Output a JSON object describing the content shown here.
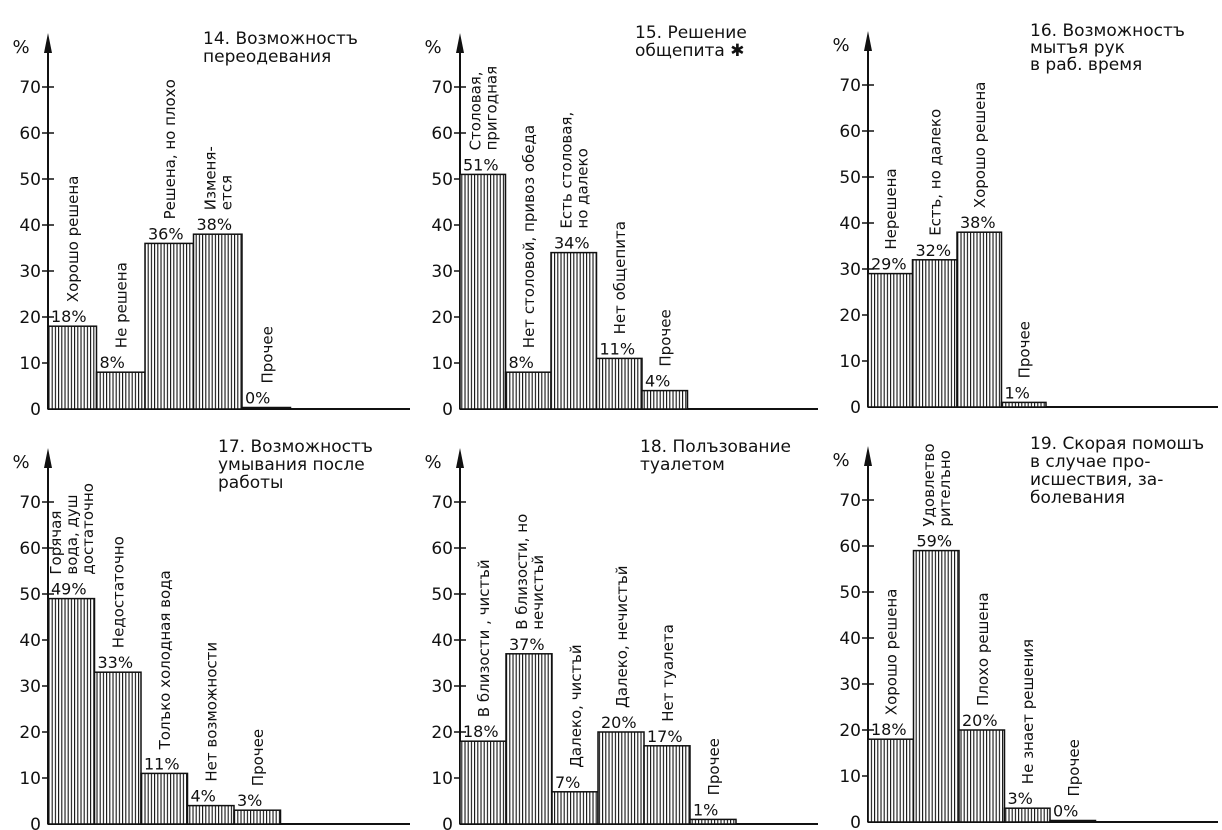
{
  "chart_data": [
    {
      "type": "bar",
      "title_lines": [
        "14. Возможностъ",
        "переодевания"
      ],
      "ylabel": "%",
      "yticks": [
        0,
        10,
        20,
        30,
        40,
        50,
        60,
        70
      ],
      "ylim": [
        0,
        80
      ],
      "grid": false,
      "categories": [
        [
          "Хорошо решена"
        ],
        [
          "Не решена"
        ],
        [
          "Решена, но плохо"
        ],
        [
          "Изменя-",
          "ется"
        ],
        [
          "Прочее"
        ]
      ],
      "values": [
        18,
        8,
        36,
        38,
        0
      ],
      "value_labels": [
        "18%",
        "8%",
        "36%",
        "38%",
        "0%"
      ]
    },
    {
      "type": "bar",
      "title_lines": [
        "15. Решение",
        "общепита ✱"
      ],
      "ylabel": "%",
      "yticks": [
        0,
        10,
        20,
        30,
        40,
        50,
        60,
        70
      ],
      "ylim": [
        0,
        80
      ],
      "grid": false,
      "categories": [
        [
          "Столовая,",
          "пригодная"
        ],
        [
          "Нет столовой, привоз обеда"
        ],
        [
          "Есть столовая,",
          "но далеко"
        ],
        [
          "Нет общепита"
        ],
        [
          "Прочее"
        ]
      ],
      "values": [
        51,
        8,
        34,
        11,
        4
      ],
      "value_labels": [
        "51%",
        "8%",
        "34%",
        "11%",
        "4%"
      ]
    },
    {
      "type": "bar",
      "title_lines": [
        "16. Возможностъ",
        "мытъя рук",
        "в раб. время"
      ],
      "ylabel": "%",
      "yticks": [
        0,
        10,
        20,
        30,
        40,
        50,
        60,
        70
      ],
      "ylim": [
        0,
        80
      ],
      "grid": false,
      "categories": [
        [
          "Нерешена"
        ],
        [
          "Естъ, но далеко"
        ],
        [
          "Хорошо решена"
        ],
        [
          "Прочее"
        ]
      ],
      "values": [
        29,
        32,
        38,
        1
      ],
      "value_labels": [
        "29%",
        "32%",
        "38%",
        "1%"
      ]
    },
    {
      "type": "bar",
      "title_lines": [
        "17. Возможностъ",
        "умывания после",
        "работы"
      ],
      "ylabel": "%",
      "yticks": [
        0,
        10,
        20,
        30,
        40,
        50,
        60,
        70
      ],
      "ylim": [
        0,
        80
      ],
      "grid": false,
      "categories": [
        [
          "Горячая",
          "вода, душ",
          "достаточно"
        ],
        [
          "Недостаточно"
        ],
        [
          "Толъко холодная вода"
        ],
        [
          "Нет возможности"
        ],
        [
          "Прочее"
        ]
      ],
      "values": [
        49,
        33,
        11,
        4,
        3
      ],
      "value_labels": [
        "49%",
        "33%",
        "11%",
        "4%",
        "3%"
      ]
    },
    {
      "type": "bar",
      "title_lines": [
        "18. Полъзование",
        "туалетом"
      ],
      "ylabel": "%",
      "yticks": [
        0,
        10,
        20,
        30,
        40,
        50,
        60,
        70
      ],
      "ylim": [
        0,
        80
      ],
      "grid": false,
      "categories": [
        [
          "В близости , чистъй"
        ],
        [
          "В близости, но",
          "нечистъй"
        ],
        [
          "Далеко, чистъй"
        ],
        [
          "Далеко, нечистъй"
        ],
        [
          "Нет туалета"
        ],
        [
          "Прочее"
        ]
      ],
      "values": [
        18,
        37,
        7,
        20,
        17,
        1
      ],
      "value_labels": [
        "18%",
        "37%",
        "7%",
        "20%",
        "17%",
        "1%"
      ]
    },
    {
      "type": "bar",
      "title_lines": [
        "19. Скорая помошъ",
        "в случае про-",
        "исшествия, за-",
        "болевания"
      ],
      "ylabel": "%",
      "yticks": [
        0,
        10,
        20,
        30,
        40,
        50,
        60,
        70
      ],
      "ylim": [
        0,
        80
      ],
      "grid": false,
      "categories": [
        [
          "Хорошо решена"
        ],
        [
          "Удовлетво",
          "рителъно"
        ],
        [
          "Плохо решена"
        ],
        [
          "Не знает решения"
        ],
        [
          "Прочее"
        ]
      ],
      "values": [
        18,
        59,
        20,
        3,
        0
      ],
      "value_labels": [
        "18%",
        "59%",
        "20%",
        "3%",
        "0%"
      ]
    }
  ]
}
